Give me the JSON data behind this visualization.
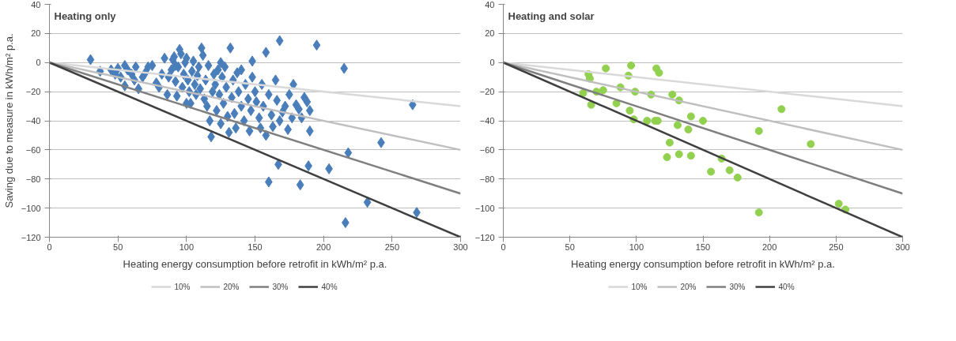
{
  "chart_data": [
    {
      "type": "scatter",
      "title": "Heating only",
      "xlabel": "Heating energy consumption before retrofit in kWh/m² p.a.",
      "ylabel": "Saving due to measure in kWh/m² p.a.",
      "xlim": [
        0,
        300
      ],
      "ylim": [
        -120,
        40
      ],
      "xticks": [
        0,
        50,
        100,
        150,
        200,
        250,
        300
      ],
      "yticks": [
        -120,
        -100,
        -80,
        -60,
        -40,
        -20,
        0,
        20,
        40
      ],
      "grid": "y",
      "legend": "bottom",
      "series": [
        {
          "marker": "diamond",
          "color": "#4a7ebb",
          "x": [
            30,
            37,
            45,
            48,
            50,
            52,
            55,
            57,
            55,
            60,
            62,
            65,
            63,
            68,
            70,
            72,
            75,
            78,
            80,
            82,
            84,
            86,
            87,
            89,
            90,
            91,
            92,
            93,
            94,
            95,
            96,
            97,
            98,
            99,
            100,
            101,
            102,
            103,
            104,
            105,
            106,
            107,
            108,
            109,
            110,
            111,
            112,
            113,
            114,
            115,
            116,
            117,
            118,
            119,
            120,
            121,
            122,
            123,
            124,
            125,
            126,
            127,
            128,
            129,
            130,
            131,
            132,
            133,
            134,
            135,
            136,
            137,
            138,
            140,
            142,
            143,
            145,
            146,
            147,
            148,
            150,
            151,
            153,
            154,
            155,
            156,
            158,
            160,
            162,
            163,
            165,
            166,
            168,
            170,
            172,
            174,
            175,
            177,
            178,
            180,
            182,
            184,
            186,
            188,
            190,
            190,
            168,
            195,
            215,
            158,
            125,
            100,
            92,
            148,
            140,
            160,
            183,
            216,
            268,
            265,
            232,
            167,
            189,
            204,
            218,
            242
          ],
          "values": [
            2,
            -6,
            -5,
            -8,
            -4,
            -10,
            -2,
            -5,
            -16,
            -8,
            -12,
            -18,
            -3,
            -10,
            -7,
            -3,
            -2,
            -14,
            -17,
            -8,
            3,
            -22,
            -10,
            -5,
            2,
            4,
            -13,
            -23,
            -3,
            9,
            6,
            -17,
            -8,
            0,
            3,
            -12,
            -20,
            -28,
            -6,
            1,
            -15,
            -22,
            -9,
            -3,
            -18,
            10,
            5,
            -25,
            -12,
            -30,
            -2,
            -40,
            -51,
            -20,
            -8,
            -15,
            -33,
            -5,
            -22,
            -42,
            -10,
            -28,
            -3,
            -17,
            -37,
            -48,
            10,
            -24,
            -12,
            -35,
            -45,
            -7,
            -20,
            -30,
            -40,
            -15,
            -25,
            -47,
            -33,
            -10,
            -20,
            -27,
            -38,
            -45,
            -15,
            -30,
            -50,
            -22,
            -36,
            -44,
            -12,
            -26,
            -40,
            -34,
            -30,
            -46,
            -22,
            -38,
            -15,
            -29,
            -32,
            -38,
            -24,
            -27,
            -33,
            -47,
            15,
            12,
            -4,
            7,
            0,
            -28,
            -2,
            1,
            -5,
            -82,
            -84,
            -110,
            -103,
            -29,
            -96,
            -70,
            -71,
            -73,
            -62,
            -55
          ]
        },
        {
          "type": "line",
          "name": "10%",
          "color": "#d9d9d9",
          "x": [
            0,
            300
          ],
          "values": [
            0,
            -30
          ]
        },
        {
          "type": "line",
          "name": "20%",
          "color": "#bfbfbf",
          "x": [
            0,
            300
          ],
          "values": [
            0,
            -60
          ]
        },
        {
          "type": "line",
          "name": "30%",
          "color": "#7f7f7f",
          "x": [
            0,
            300
          ],
          "values": [
            0,
            -90
          ]
        },
        {
          "type": "line",
          "name": "40%",
          "color": "#404040",
          "x": [
            0,
            300
          ],
          "values": [
            0,
            -120
          ]
        }
      ]
    },
    {
      "type": "scatter",
      "title": "Heating and solar",
      "xlabel": "Heating energy consumption before retrofit in kWh/m² p.a.",
      "xlim": [
        0,
        300
      ],
      "ylim": [
        -120,
        40
      ],
      "xticks": [
        0,
        50,
        100,
        150,
        200,
        250,
        300
      ],
      "yticks": [
        -120,
        -100,
        -80,
        -60,
        -40,
        -20,
        0,
        20,
        40
      ],
      "grid": "y",
      "legend": "bottom",
      "series": [
        {
          "marker": "circle",
          "color": "#92d050",
          "x": [
            64,
            65,
            60,
            66,
            70,
            75,
            77,
            88,
            85,
            96,
            94,
            95,
            98,
            99,
            108,
            111,
            115,
            117,
            114,
            116,
            127,
            132,
            141,
            150,
            131,
            139,
            125,
            123,
            132,
            141,
            164,
            156,
            170,
            176,
            192,
            192,
            209,
            231,
            252,
            257
          ],
          "values": [
            -8,
            -11,
            -21,
            -29,
            -20,
            -19,
            -4,
            -17,
            -28,
            -2,
            -9,
            -33,
            -39,
            -20,
            -40,
            -22,
            -4,
            -7,
            -40,
            -40,
            -22,
            -26,
            -37,
            -40,
            -43,
            -46,
            -55,
            -65,
            -63,
            -64,
            -66,
            -75,
            -74,
            -79,
            -47,
            -103,
            -32,
            -56,
            -97,
            -101
          ]
        },
        {
          "type": "line",
          "name": "10%",
          "color": "#d9d9d9",
          "x": [
            0,
            300
          ],
          "values": [
            0,
            -30
          ]
        },
        {
          "type": "line",
          "name": "20%",
          "color": "#bfbfbf",
          "x": [
            0,
            300
          ],
          "values": [
            0,
            -60
          ]
        },
        {
          "type": "line",
          "name": "30%",
          "color": "#7f7f7f",
          "x": [
            0,
            300
          ],
          "values": [
            0,
            -90
          ]
        },
        {
          "type": "line",
          "name": "40%",
          "color": "#404040",
          "x": [
            0,
            300
          ],
          "values": [
            0,
            -120
          ]
        }
      ]
    }
  ]
}
